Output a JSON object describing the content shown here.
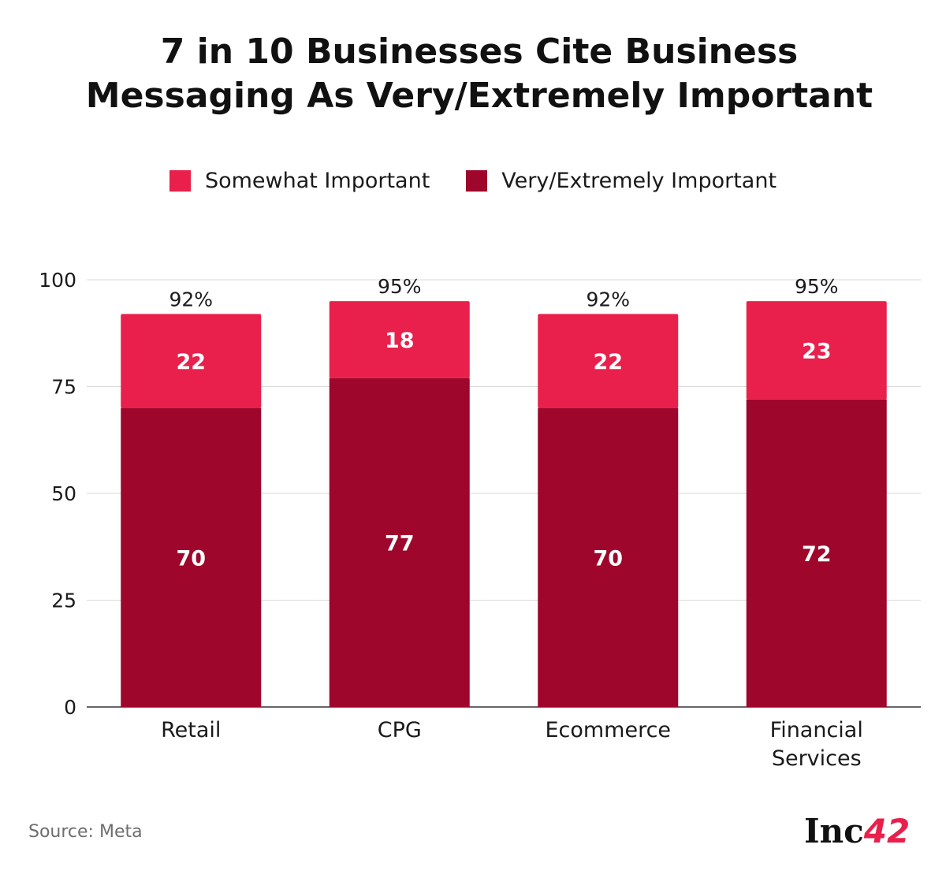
{
  "title_lines": [
    "7 in 10 Businesses Cite Business",
    "Messaging As Very/Extremely Important"
  ],
  "source": "Source: Meta",
  "logo": {
    "text": "Inc",
    "number": "42"
  },
  "colors": {
    "somewhat": "#e8204b",
    "very": "#9e062b",
    "grid": "#d9d9d9",
    "axis": "#333333"
  },
  "chart_data": {
    "type": "bar",
    "stacked": true,
    "categories": [
      [
        "Retail"
      ],
      [
        "CPG"
      ],
      [
        "Ecommerce"
      ],
      [
        "Financial",
        "Services"
      ]
    ],
    "series": [
      {
        "name": "Very/Extremely Important",
        "values": [
          70,
          77,
          70,
          72
        ],
        "color": "#9e062b"
      },
      {
        "name": "Somewhat Important",
        "values": [
          22,
          18,
          22,
          23
        ],
        "color": "#e8204b"
      }
    ],
    "totals": [
      "92%",
      "95%",
      "92%",
      "95%"
    ],
    "legend_order": [
      "Somewhat Important",
      "Very/Extremely Important"
    ],
    "yticks": [
      0,
      25,
      50,
      75,
      100
    ],
    "ylim": [
      0,
      100
    ],
    "grid": true,
    "legend_position": "top"
  }
}
